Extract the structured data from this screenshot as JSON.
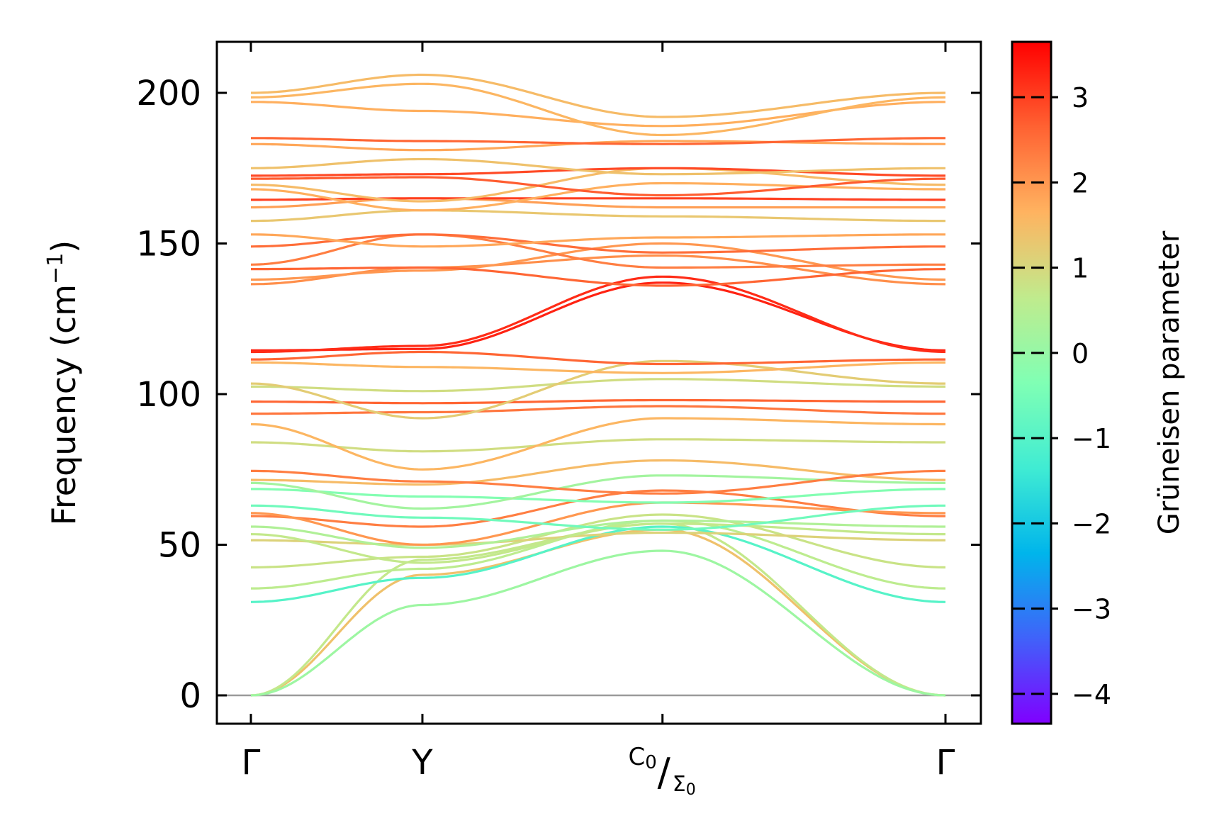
{
  "chart_data": {
    "type": "line",
    "title": "",
    "xlabel": "",
    "ylabel": {
      "main": "Frequency (cm",
      "sup": "−1",
      "close": ")"
    },
    "ylim": [
      -10,
      218
    ],
    "yticks": [
      0,
      50,
      100,
      150,
      200
    ],
    "ytick_labels": [
      "0",
      "50",
      "100",
      "150",
      "200"
    ],
    "x_points": [
      0,
      1,
      2.4,
      4.05
    ],
    "xtick_labels": [
      {
        "text": "Γ"
      },
      {
        "text": "Y"
      },
      {
        "top": "C",
        "top_sub": "0",
        "slash": "/",
        "bottom": "Σ",
        "bottom_sub": "0"
      },
      {
        "text": "Γ"
      }
    ],
    "colorbar": {
      "label": "Grüneisen parameter",
      "range": [
        -4.35,
        3.65
      ],
      "ticks": [
        -4,
        -3,
        -2,
        -1,
        0,
        1,
        2,
        3
      ],
      "tick_labels": [
        "−4",
        "−3",
        "−2",
        "−1",
        "0",
        "1",
        "2",
        "3"
      ],
      "colormap": "rainbow"
    },
    "zero_line": 0,
    "series": [
      {
        "freq": [
          0,
          40,
          55,
          0
        ],
        "g": 1.4
      },
      {
        "freq": [
          0,
          45,
          57,
          0
        ],
        "g": 0.7
      },
      {
        "freq": [
          0,
          30,
          48,
          0
        ],
        "g": 0.1
      },
      {
        "freq": [
          31,
          39,
          56,
          31
        ],
        "g": -1.0
      },
      {
        "freq": [
          35.5,
          42,
          58,
          35.5
        ],
        "g": 0.6
      },
      {
        "freq": [
          42.5,
          46,
          60,
          42.5
        ],
        "g": 0.8
      },
      {
        "freq": [
          51.5,
          50,
          54,
          51.5
        ],
        "g": 1.1
      },
      {
        "freq": [
          53.5,
          44,
          57,
          53.5
        ],
        "g": 0.7
      },
      {
        "freq": [
          56,
          49,
          58,
          56
        ],
        "g": 0.4
      },
      {
        "freq": [
          59.5,
          56,
          68,
          59.5
        ],
        "g": 2.3
      },
      {
        "freq": [
          60.5,
          50,
          64,
          60.5
        ],
        "g": 2.0
      },
      {
        "freq": [
          63,
          59,
          55,
          63
        ],
        "g": -0.6
      },
      {
        "freq": [
          68.5,
          66,
          64,
          68.5
        ],
        "g": -0.3
      },
      {
        "freq": [
          70.5,
          62,
          73,
          70.5
        ],
        "g": 0.2
      },
      {
        "freq": [
          71.5,
          70,
          78,
          71.5
        ],
        "g": 1.5
      },
      {
        "freq": [
          74.5,
          71,
          67,
          74.5
        ],
        "g": 2.3
      },
      {
        "freq": [
          84,
          81,
          85,
          84
        ],
        "g": 0.9
      },
      {
        "freq": [
          90,
          75,
          92,
          90
        ],
        "g": 1.6
      },
      {
        "freq": [
          93.5,
          94,
          96,
          93.5
        ],
        "g": 2.4
      },
      {
        "freq": [
          97.5,
          97,
          98,
          97.5
        ],
        "g": 2.6
      },
      {
        "freq": [
          102.5,
          101,
          105,
          102.5
        ],
        "g": 0.9
      },
      {
        "freq": [
          103.5,
          92,
          111,
          103.5
        ],
        "g": 1.2
      },
      {
        "freq": [
          110.5,
          109,
          107,
          110.5
        ],
        "g": 1.6
      },
      {
        "freq": [
          111.5,
          114,
          110,
          111.5
        ],
        "g": 2.6
      },
      {
        "freq": [
          114.5,
          115,
          137,
          114.5
        ],
        "g": 3.3
      },
      {
        "freq": [
          114,
          116,
          139,
          114
        ],
        "g": 3.2
      },
      {
        "freq": [
          136.5,
          142,
          146,
          136.5
        ],
        "g": 2.1
      },
      {
        "freq": [
          138,
          141,
          150,
          138
        ],
        "g": 2.0
      },
      {
        "freq": [
          141.5,
          142,
          136,
          141.5
        ],
        "g": 2.6
      },
      {
        "freq": [
          143,
          153,
          142,
          143
        ],
        "g": 2.3
      },
      {
        "freq": [
          149,
          153,
          147,
          149
        ],
        "g": 2.5
      },
      {
        "freq": [
          153,
          149,
          152,
          153
        ],
        "g": 1.8
      },
      {
        "freq": [
          157.5,
          161,
          159,
          157.5
        ],
        "g": 1.3
      },
      {
        "freq": [
          162,
          165,
          162,
          162
        ],
        "g": 1.9
      },
      {
        "freq": [
          164.5,
          165,
          165,
          164.5
        ],
        "g": 3.0
      },
      {
        "freq": [
          168,
          161,
          170,
          168
        ],
        "g": 1.7
      },
      {
        "freq": [
          169.5,
          164,
          175,
          169.5
        ],
        "g": 1.5
      },
      {
        "freq": [
          171.5,
          172,
          166,
          171.5
        ],
        "g": 2.7
      },
      {
        "freq": [
          172.5,
          173,
          175,
          172.5
        ],
        "g": 2.9
      },
      {
        "freq": [
          175,
          178,
          173,
          175
        ],
        "g": 1.4
      },
      {
        "freq": [
          183,
          181,
          184,
          183
        ],
        "g": 1.8
      },
      {
        "freq": [
          185,
          184,
          183,
          185
        ],
        "g": 2.6
      },
      {
        "freq": [
          197,
          194,
          189,
          197
        ],
        "g": 1.7
      },
      {
        "freq": [
          198.5,
          203,
          186,
          198.5
        ],
        "g": 1.6
      },
      {
        "freq": [
          200,
          206,
          192,
          200
        ],
        "g": 1.5
      }
    ]
  }
}
